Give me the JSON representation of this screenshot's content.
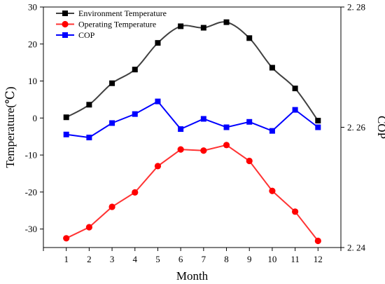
{
  "chart_data": {
    "type": "line",
    "xlabel": "Month",
    "ylabel": "Temperature(℃)",
    "y2label": "COP",
    "x": [
      1,
      2,
      3,
      4,
      5,
      6,
      7,
      8,
      9,
      10,
      11,
      12
    ],
    "xlim": [
      0,
      13
    ],
    "ylim": [
      -35,
      30
    ],
    "y2lim": [
      2.24,
      2.28
    ],
    "yticks": [
      -30,
      -20,
      -10,
      0,
      10,
      20,
      30
    ],
    "y2ticks": [
      2.24,
      2.26,
      2.28
    ],
    "y2tick_labels": [
      "2. 24",
      "2. 26",
      "2. 28"
    ],
    "grid": false,
    "legend_position": "top-left",
    "series": [
      {
        "name": "Environment Temperature",
        "axis": "left",
        "marker": "square",
        "color": "#404040",
        "marker_color": "#000000",
        "smooth": true,
        "values": [
          0.2,
          3.6,
          9.4,
          13.1,
          20.3,
          24.8,
          24.4,
          25.9,
          21.6,
          13.6,
          8.0,
          -0.7
        ]
      },
      {
        "name": "Operating Temperature",
        "axis": "left",
        "marker": "circle",
        "color": "#ff3333",
        "marker_color": "#ff0000",
        "smooth": false,
        "values": [
          -32.5,
          -29.5,
          -24.0,
          -20.1,
          -13.0,
          -8.5,
          -8.8,
          -7.3,
          -11.6,
          -19.7,
          -25.3,
          -33.2
        ]
      },
      {
        "name": "COP",
        "axis": "right",
        "marker": "square",
        "color": "#0000ff",
        "marker_color": "#0000ff",
        "smooth": false,
        "values": [
          2.2588,
          2.2583,
          2.2607,
          2.2622,
          2.2643,
          2.2597,
          2.2614,
          2.26,
          2.2609,
          2.2594,
          2.2629,
          2.26
        ]
      }
    ]
  }
}
